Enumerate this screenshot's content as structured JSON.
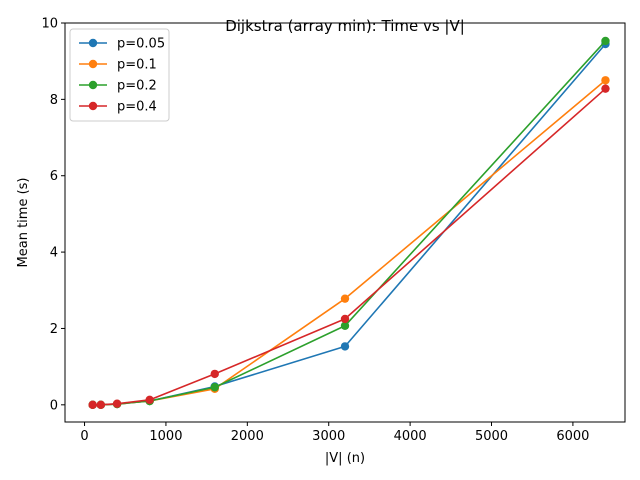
{
  "chart_data": {
    "type": "line",
    "title": "Dijkstra (array min): Time vs |V|",
    "xlabel": "|V| (n)",
    "ylabel": "Mean time (s)",
    "xlim": [
      -240,
      6640
    ],
    "ylim": [
      -0.45,
      10
    ],
    "xticks": [
      0,
      1000,
      2000,
      3000,
      4000,
      5000,
      6000
    ],
    "yticks": [
      0,
      2,
      4,
      6,
      8,
      10
    ],
    "x": [
      100,
      200,
      400,
      800,
      1600,
      3200,
      6400
    ],
    "grid": false,
    "legend_position": "top-left",
    "series": [
      {
        "name": "p=0.05",
        "color": "#1f77b4",
        "values": [
          0.0,
          0.0,
          0.02,
          0.1,
          0.48,
          1.53,
          9.45
        ]
      },
      {
        "name": "p=0.1",
        "color": "#ff7f0e",
        "values": [
          0.0,
          0.0,
          0.02,
          0.1,
          0.42,
          2.78,
          8.5
        ]
      },
      {
        "name": "p=0.2",
        "color": "#2ca02c",
        "values": [
          0.0,
          0.0,
          0.02,
          0.1,
          0.46,
          2.07,
          9.53
        ]
      },
      {
        "name": "p=0.4",
        "color": "#d62728",
        "values": [
          0.0,
          0.0,
          0.03,
          0.13,
          0.81,
          2.25,
          8.28
        ]
      }
    ]
  }
}
